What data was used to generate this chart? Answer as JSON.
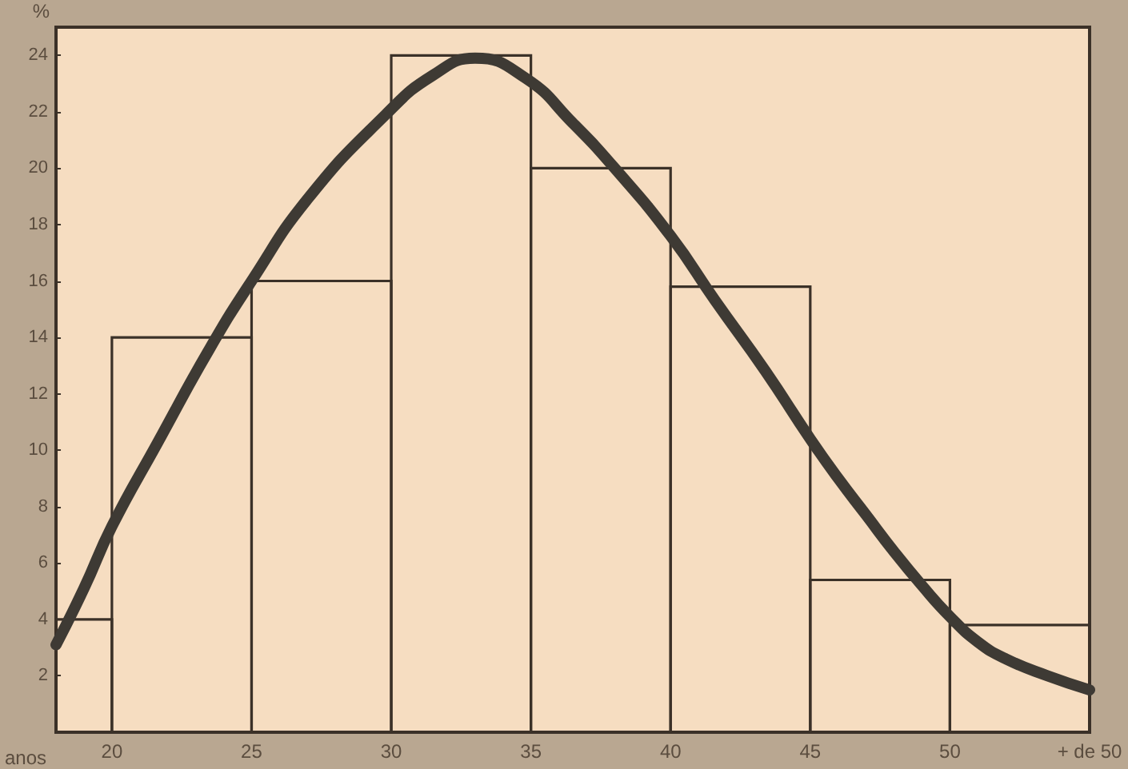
{
  "chart_data": {
    "type": "histogram",
    "xlabel": "anos",
    "ylabel": "%",
    "bins": [
      18,
      20,
      25,
      30,
      35,
      40,
      45,
      50,
      55
    ],
    "series": [
      {
        "color": "#3b3128",
        "values": [
          4,
          14,
          16,
          24,
          20,
          15.8,
          5.4,
          3.8
        ]
      },
      {
        "type": "line",
        "color": "#3e3a34",
        "x": [
          18,
          19,
          20,
          21.6,
          23.5,
          25,
          27,
          29.8,
          31.5,
          33,
          34.8,
          36.5,
          38,
          40,
          41.6,
          43.4,
          45,
          46,
          47,
          48,
          49,
          50,
          51,
          52,
          53.5,
          55
        ],
        "values": [
          3.1,
          5.1,
          7.3,
          10.2,
          13.6,
          16,
          18.9,
          21.9,
          23.3,
          23.9,
          23.2,
          21.6,
          20,
          17.6,
          15.3,
          12.8,
          10.4,
          9,
          7.7,
          6.4,
          5.2,
          4.1,
          3.2,
          2.6,
          2,
          1.5
        ]
      }
    ],
    "xlim": [
      18,
      55
    ],
    "ylim": [
      0,
      25
    ],
    "xticks": [
      20,
      25,
      30,
      35,
      40,
      45,
      50,
      {
        "value": 55,
        "label": "+ de 50"
      }
    ],
    "yticks": [
      2,
      4,
      6,
      8,
      10,
      12,
      14,
      16,
      18,
      20,
      22,
      24
    ],
    "marker": "none",
    "line_style": "solid"
  }
}
